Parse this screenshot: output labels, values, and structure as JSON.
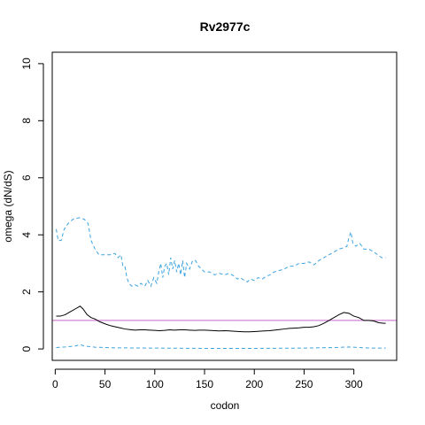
{
  "chart_data": {
    "type": "line",
    "title": "Rv2977c",
    "xlabel": "codon",
    "ylabel": "omega (dN/dS)",
    "xlim": [
      -3,
      343
    ],
    "ylim": [
      -0.4,
      10.4
    ],
    "xticks": [
      0,
      50,
      100,
      150,
      200,
      250,
      300
    ],
    "yticks": [
      0,
      2,
      4,
      6,
      8,
      10
    ],
    "grid": false,
    "reference_line": {
      "y": 1.0,
      "color": "#c964c9"
    },
    "series": [
      {
        "role": "upper",
        "style": "dashed",
        "color": "#3ba3e0",
        "points": [
          [
            1,
            4.2
          ],
          [
            3,
            3.8
          ],
          [
            6,
            3.8
          ],
          [
            9,
            4.2
          ],
          [
            13,
            4.4
          ],
          [
            18,
            4.55
          ],
          [
            24,
            4.6
          ],
          [
            29,
            4.55
          ],
          [
            33,
            4.4
          ],
          [
            36,
            3.8
          ],
          [
            40,
            3.5
          ],
          [
            44,
            3.3
          ],
          [
            50,
            3.3
          ],
          [
            55,
            3.3
          ],
          [
            60,
            3.35
          ],
          [
            63,
            3.2
          ],
          [
            66,
            3.3
          ],
          [
            68,
            2.9
          ],
          [
            70,
            2.9
          ],
          [
            72,
            2.5
          ],
          [
            74,
            2.3
          ],
          [
            77,
            2.2
          ],
          [
            80,
            2.25
          ],
          [
            83,
            2.2
          ],
          [
            86,
            2.3
          ],
          [
            90,
            2.2
          ],
          [
            93,
            2.4
          ],
          [
            96,
            2.2
          ],
          [
            99,
            2.5
          ],
          [
            102,
            2.3
          ],
          [
            104,
            2.7
          ],
          [
            106,
            3.0
          ],
          [
            108,
            2.5
          ],
          [
            110,
            2.9
          ],
          [
            112,
            3.0
          ],
          [
            114,
            2.6
          ],
          [
            116,
            3.2
          ],
          [
            118,
            2.8
          ],
          [
            120,
            3.1
          ],
          [
            122,
            2.7
          ],
          [
            124,
            3.0
          ],
          [
            126,
            2.6
          ],
          [
            128,
            3.1
          ],
          [
            130,
            2.5
          ],
          [
            132,
            3.0
          ],
          [
            135,
            2.8
          ],
          [
            138,
            3.1
          ],
          [
            141,
            3.1
          ],
          [
            144,
            2.9
          ],
          [
            147,
            2.8
          ],
          [
            150,
            2.7
          ],
          [
            155,
            2.7
          ],
          [
            160,
            2.6
          ],
          [
            165,
            2.65
          ],
          [
            170,
            2.6
          ],
          [
            175,
            2.65
          ],
          [
            180,
            2.55
          ],
          [
            183,
            2.45
          ],
          [
            186,
            2.5
          ],
          [
            190,
            2.4
          ],
          [
            193,
            2.35
          ],
          [
            196,
            2.45
          ],
          [
            200,
            2.4
          ],
          [
            204,
            2.5
          ],
          [
            208,
            2.45
          ],
          [
            212,
            2.55
          ],
          [
            216,
            2.6
          ],
          [
            220,
            2.7
          ],
          [
            225,
            2.75
          ],
          [
            230,
            2.8
          ],
          [
            235,
            2.9
          ],
          [
            240,
            2.9
          ],
          [
            245,
            3.0
          ],
          [
            250,
            3.0
          ],
          [
            255,
            3.05
          ],
          [
            260,
            2.95
          ],
          [
            265,
            3.1
          ],
          [
            270,
            3.2
          ],
          [
            275,
            3.3
          ],
          [
            280,
            3.4
          ],
          [
            285,
            3.5
          ],
          [
            290,
            3.55
          ],
          [
            293,
            3.6
          ],
          [
            295,
            3.9
          ],
          [
            297,
            4.1
          ],
          [
            299,
            3.7
          ],
          [
            302,
            3.6
          ],
          [
            306,
            3.7
          ],
          [
            310,
            3.5
          ],
          [
            315,
            3.5
          ],
          [
            320,
            3.4
          ],
          [
            324,
            3.3
          ],
          [
            328,
            3.2
          ],
          [
            332,
            3.2
          ]
        ]
      },
      {
        "role": "estimate",
        "style": "solid",
        "color": "#000000",
        "points": [
          [
            1,
            1.15
          ],
          [
            5,
            1.15
          ],
          [
            10,
            1.2
          ],
          [
            15,
            1.3
          ],
          [
            20,
            1.4
          ],
          [
            25,
            1.5
          ],
          [
            28,
            1.4
          ],
          [
            32,
            1.2
          ],
          [
            36,
            1.1
          ],
          [
            40,
            1.05
          ],
          [
            45,
            0.95
          ],
          [
            50,
            0.88
          ],
          [
            55,
            0.82
          ],
          [
            60,
            0.78
          ],
          [
            65,
            0.74
          ],
          [
            70,
            0.7
          ],
          [
            75,
            0.68
          ],
          [
            80,
            0.66
          ],
          [
            85,
            0.67
          ],
          [
            90,
            0.67
          ],
          [
            95,
            0.66
          ],
          [
            100,
            0.65
          ],
          [
            105,
            0.64
          ],
          [
            110,
            0.65
          ],
          [
            115,
            0.67
          ],
          [
            120,
            0.66
          ],
          [
            125,
            0.67
          ],
          [
            130,
            0.67
          ],
          [
            135,
            0.66
          ],
          [
            140,
            0.65
          ],
          [
            145,
            0.66
          ],
          [
            150,
            0.66
          ],
          [
            155,
            0.65
          ],
          [
            160,
            0.64
          ],
          [
            165,
            0.63
          ],
          [
            170,
            0.64
          ],
          [
            175,
            0.63
          ],
          [
            180,
            0.62
          ],
          [
            185,
            0.61
          ],
          [
            190,
            0.6
          ],
          [
            195,
            0.6
          ],
          [
            200,
            0.61
          ],
          [
            205,
            0.62
          ],
          [
            210,
            0.63
          ],
          [
            215,
            0.64
          ],
          [
            220,
            0.66
          ],
          [
            225,
            0.68
          ],
          [
            230,
            0.7
          ],
          [
            235,
            0.72
          ],
          [
            240,
            0.73
          ],
          [
            245,
            0.74
          ],
          [
            250,
            0.76
          ],
          [
            255,
            0.76
          ],
          [
            260,
            0.78
          ],
          [
            265,
            0.82
          ],
          [
            270,
            0.9
          ],
          [
            275,
            1.0
          ],
          [
            280,
            1.1
          ],
          [
            285,
            1.2
          ],
          [
            290,
            1.28
          ],
          [
            295,
            1.25
          ],
          [
            300,
            1.15
          ],
          [
            305,
            1.1
          ],
          [
            310,
            1.0
          ],
          [
            315,
            1.0
          ],
          [
            320,
            0.98
          ],
          [
            325,
            0.92
          ],
          [
            330,
            0.9
          ],
          [
            332,
            0.9
          ]
        ]
      },
      {
        "role": "lower",
        "style": "dashed",
        "color": "#3ba3e0",
        "points": [
          [
            1,
            0.05
          ],
          [
            10,
            0.07
          ],
          [
            20,
            0.1
          ],
          [
            25,
            0.15
          ],
          [
            30,
            0.1
          ],
          [
            40,
            0.06
          ],
          [
            60,
            0.04
          ],
          [
            100,
            0.03
          ],
          [
            150,
            0.02
          ],
          [
            200,
            0.02
          ],
          [
            250,
            0.03
          ],
          [
            280,
            0.05
          ],
          [
            295,
            0.07
          ],
          [
            300,
            0.06
          ],
          [
            310,
            0.04
          ],
          [
            320,
            0.03
          ],
          [
            332,
            0.03
          ]
        ]
      }
    ]
  }
}
